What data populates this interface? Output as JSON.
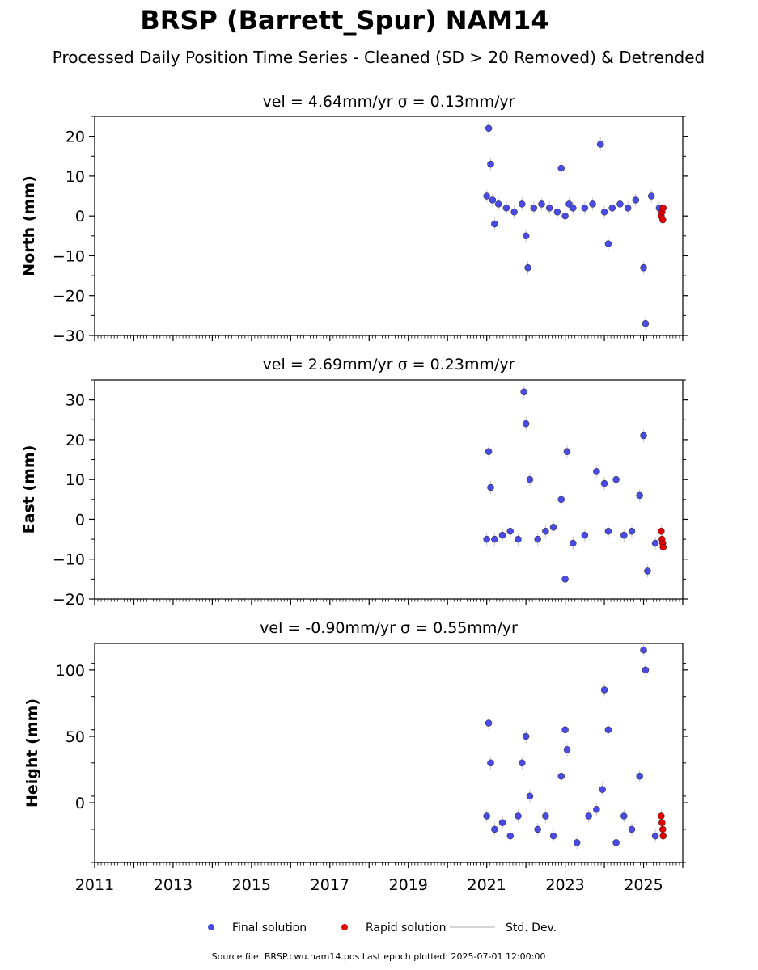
{
  "header": {
    "title": "BRSP (Barrett_Spur) NAM14",
    "subtitle": "Processed Daily Position Time Series - Cleaned (SD > 20 Removed) & Detrended"
  },
  "legend": {
    "items": [
      {
        "label": "Final solution",
        "color": "#4a4ae6",
        "kind": "point"
      },
      {
        "label": "Rapid solution",
        "color": "#e00000",
        "kind": "point"
      },
      {
        "label": "Std. Dev.",
        "color": "#c8c8c8",
        "kind": "line"
      }
    ]
  },
  "footer": {
    "source": "Source file: BRSP.cwu.nam14.pos  Last epoch plotted: 2025-07-01 12:00:00"
  },
  "colors": {
    "final": "#4a4ae6",
    "rapid": "#e00000",
    "errorbar": "#c8c8c8"
  },
  "chart_data": [
    {
      "type": "scatter",
      "title": "vel = 4.64mm/yr   σ = 0.13mm/yr",
      "ylabel": "North (mm)",
      "xlim": [
        2011,
        2026
      ],
      "ylim": [
        -30,
        25
      ],
      "yticks": [
        -30,
        -20,
        -10,
        0,
        10,
        20
      ],
      "ytick_labels": [
        "−30",
        "−20",
        "−10",
        "0",
        "10",
        "20"
      ],
      "grid": false,
      "series": [
        {
          "name": "Final solution",
          "x": [
            2021.0,
            2021.05,
            2021.1,
            2021.15,
            2021.2,
            2021.3,
            2021.5,
            2021.7,
            2021.9,
            2022.0,
            2022.05,
            2022.2,
            2022.4,
            2022.6,
            2022.8,
            2022.9,
            2023.0,
            2023.1,
            2023.2,
            2023.5,
            2023.7,
            2023.9,
            2024.0,
            2024.1,
            2024.2,
            2024.4,
            2024.6,
            2024.8,
            2025.0,
            2025.05,
            2025.2,
            2025.4
          ],
          "values": [
            5,
            22,
            13,
            4,
            -2,
            3,
            2,
            1,
            3,
            -5,
            -13,
            2,
            3,
            2,
            1,
            12,
            0,
            3,
            2,
            2,
            3,
            18,
            1,
            -7,
            2,
            3,
            2,
            4,
            -13,
            -27,
            5,
            2
          ]
        },
        {
          "name": "Rapid solution",
          "x": [
            2025.45,
            2025.47,
            2025.49,
            2025.5
          ],
          "values": [
            0,
            1,
            -1,
            2
          ]
        }
      ]
    },
    {
      "type": "scatter",
      "title": "vel = 2.69mm/yr   σ = 0.23mm/yr",
      "ylabel": "East (mm)",
      "xlim": [
        2011,
        2026
      ],
      "ylim": [
        -20,
        35
      ],
      "yticks": [
        -20,
        -10,
        0,
        10,
        20,
        30
      ],
      "ytick_labels": [
        "−20",
        "−10",
        "0",
        "10",
        "20",
        "30"
      ],
      "grid": false,
      "series": [
        {
          "name": "Final solution",
          "x": [
            2021.0,
            2021.05,
            2021.1,
            2021.2,
            2021.4,
            2021.6,
            2021.8,
            2021.95,
            2022.0,
            2022.1,
            2022.3,
            2022.5,
            2022.7,
            2022.9,
            2023.0,
            2023.05,
            2023.2,
            2023.5,
            2023.8,
            2024.0,
            2024.1,
            2024.3,
            2024.5,
            2024.7,
            2024.9,
            2025.0,
            2025.1,
            2025.3
          ],
          "values": [
            -5,
            17,
            8,
            -5,
            -4,
            -3,
            -5,
            32,
            24,
            10,
            -5,
            -3,
            -2,
            5,
            -15,
            17,
            -6,
            -4,
            12,
            9,
            -3,
            10,
            -4,
            -3,
            6,
            21,
            -13,
            -6
          ]
        },
        {
          "name": "Rapid solution",
          "x": [
            2025.45,
            2025.47,
            2025.49,
            2025.5
          ],
          "values": [
            -3,
            -5,
            -6,
            -7
          ]
        }
      ]
    },
    {
      "type": "scatter",
      "title": "vel = -0.90mm/yr   σ = 0.55mm/yr",
      "ylabel": "Height (mm)",
      "xlim": [
        2011,
        2026
      ],
      "ylim": [
        -45,
        120
      ],
      "yticks": [
        0,
        50,
        100
      ],
      "ytick_labels": [
        "0",
        "50",
        "100"
      ],
      "xticks": [
        2011,
        2013,
        2015,
        2017,
        2019,
        2021,
        2023,
        2025
      ],
      "xtick_labels": [
        "2011",
        "2013",
        "2015",
        "2017",
        "2019",
        "2021",
        "2023",
        "2025"
      ],
      "grid": false,
      "series": [
        {
          "name": "Final solution",
          "x": [
            2021.0,
            2021.05,
            2021.1,
            2021.2,
            2021.4,
            2021.6,
            2021.8,
            2021.9,
            2022.0,
            2022.1,
            2022.3,
            2022.5,
            2022.7,
            2022.9,
            2023.0,
            2023.05,
            2023.3,
            2023.6,
            2023.8,
            2023.95,
            2024.0,
            2024.1,
            2024.3,
            2024.5,
            2024.7,
            2024.9,
            2025.0,
            2025.05,
            2025.3
          ],
          "values": [
            -10,
            60,
            30,
            -20,
            -15,
            -25,
            -10,
            30,
            50,
            5,
            -20,
            -10,
            -25,
            20,
            55,
            40,
            -30,
            -10,
            -5,
            10,
            85,
            55,
            -30,
            -10,
            -20,
            20,
            115,
            100,
            -25
          ]
        },
        {
          "name": "Rapid solution",
          "x": [
            2025.45,
            2025.47,
            2025.49,
            2025.5
          ],
          "values": [
            -10,
            -15,
            -20,
            -25
          ]
        }
      ]
    }
  ]
}
